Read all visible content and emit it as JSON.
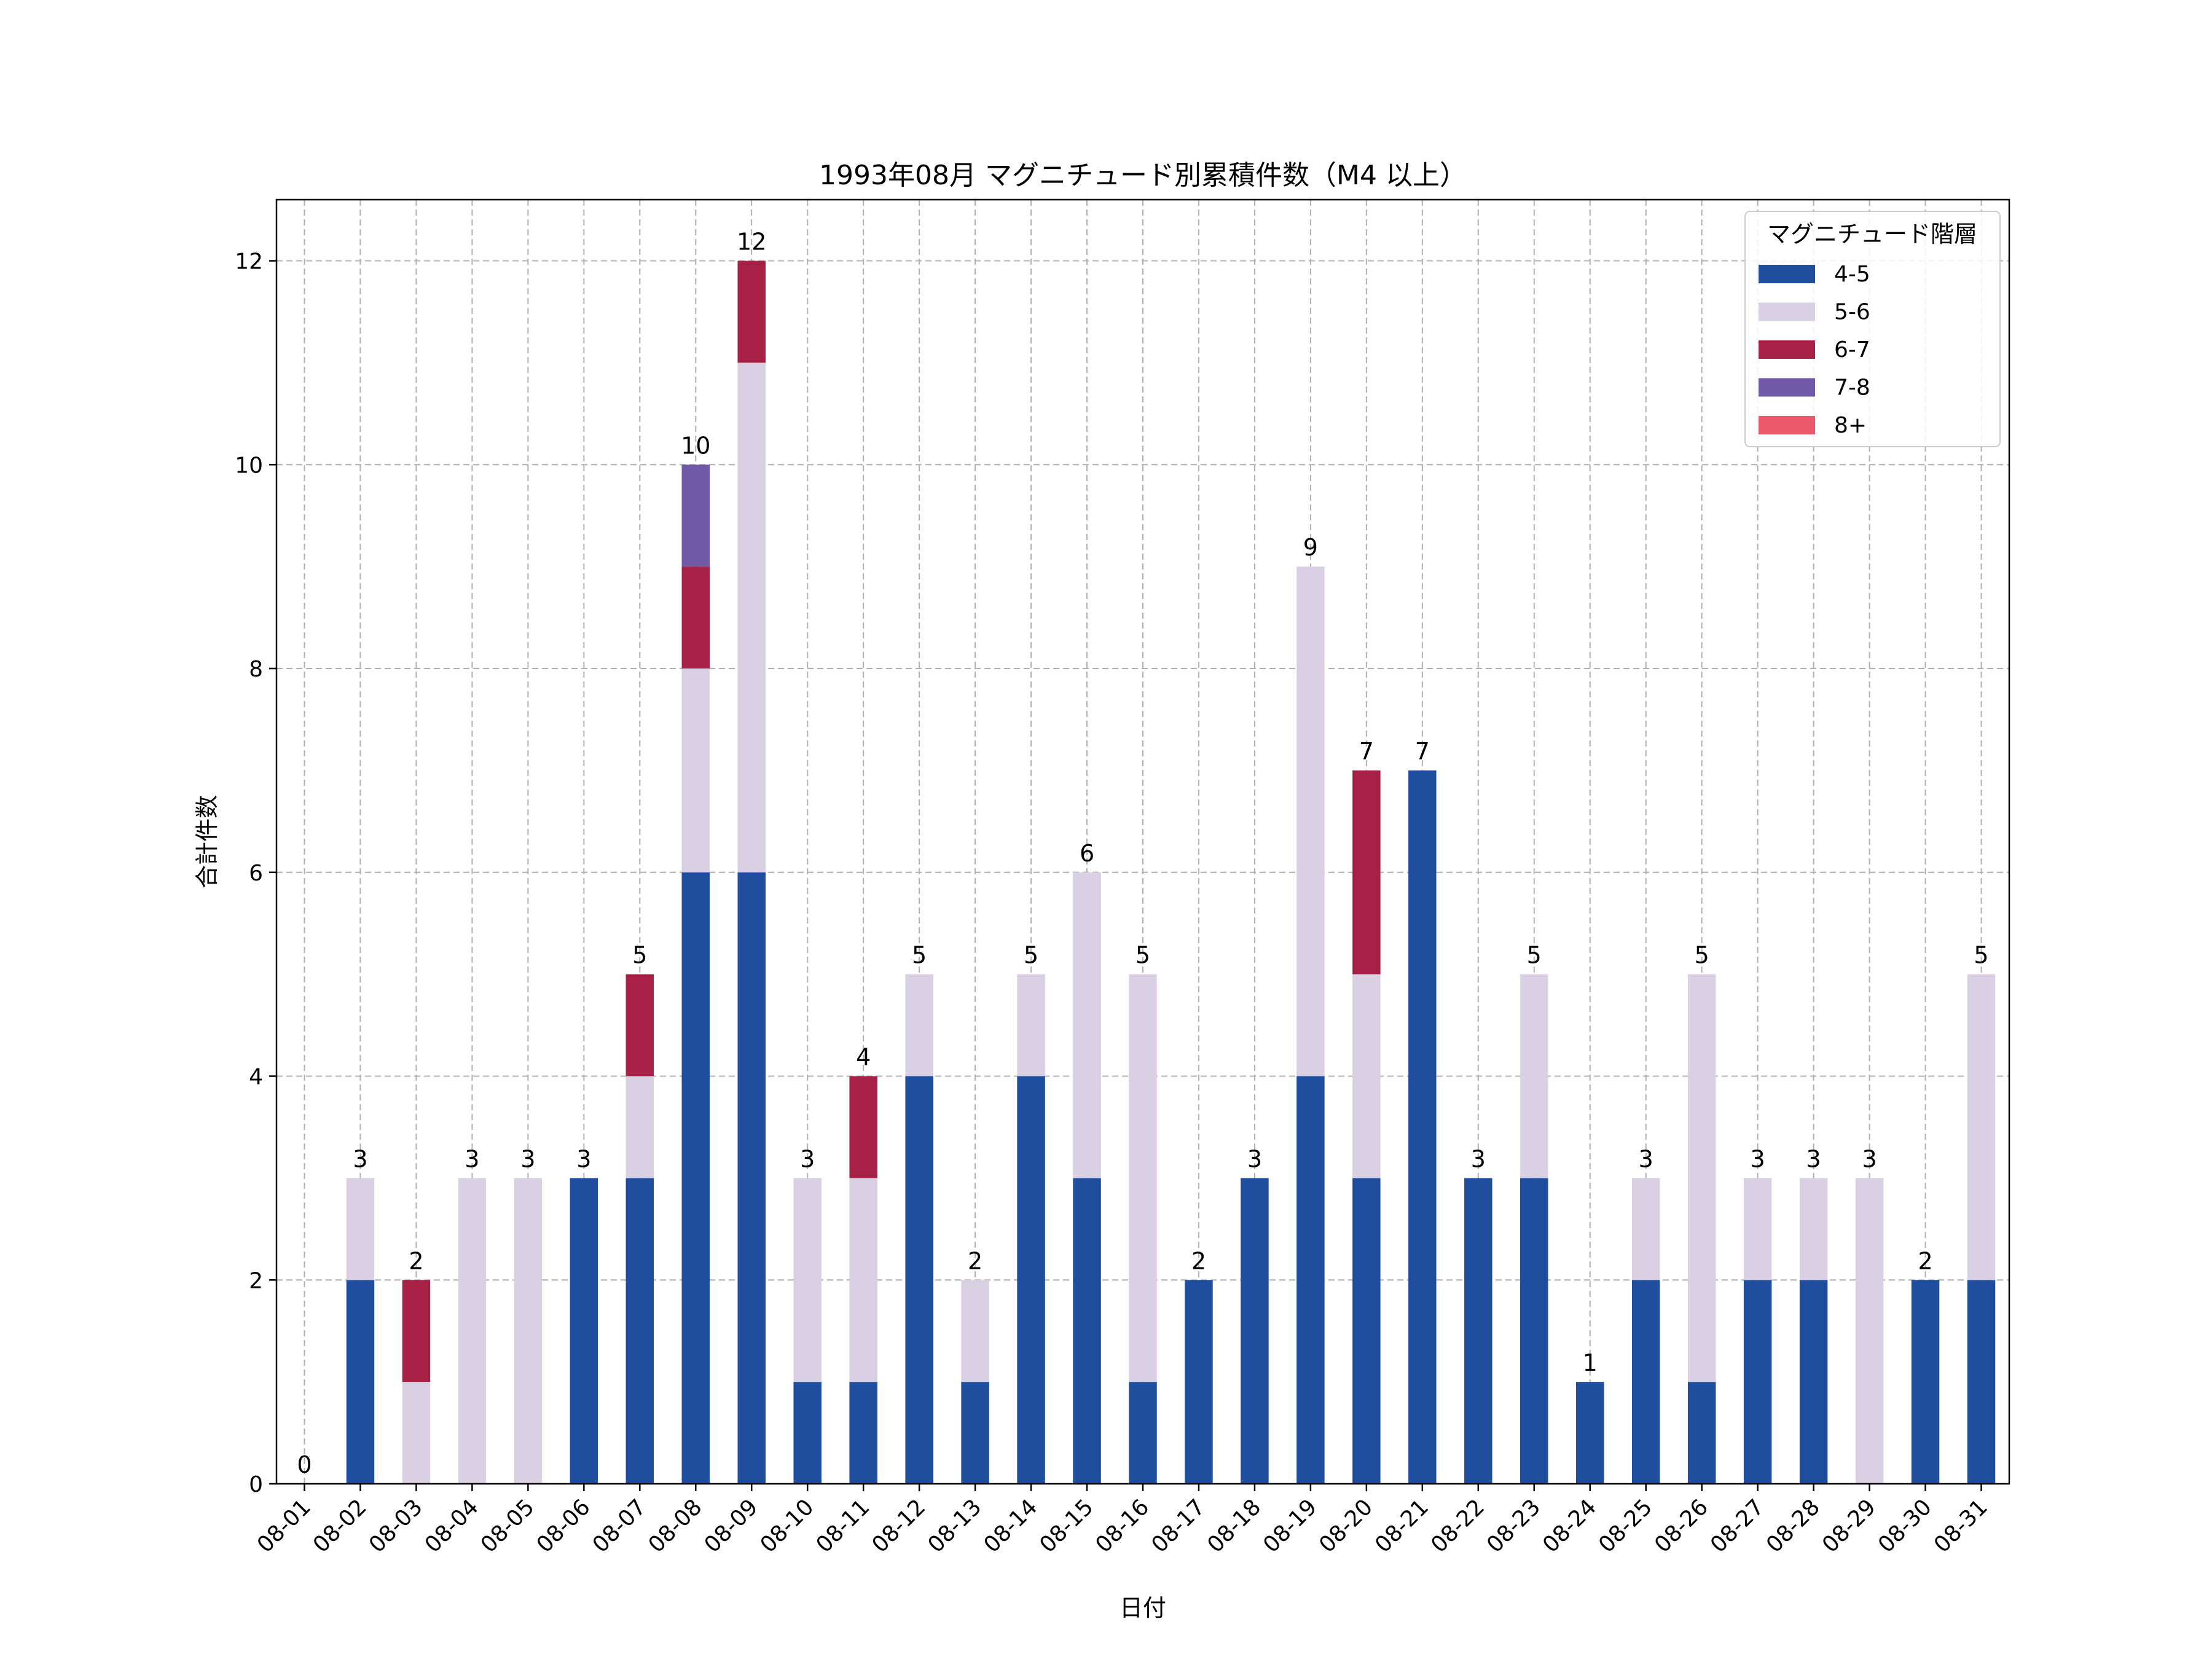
{
  "chart_data": {
    "type": "bar",
    "stacked": true,
    "title": "1993年08月 マグニチュード別累積件数（M4 以上）",
    "xlabel": "日付",
    "ylabel": "合計件数",
    "ylim": [
      0,
      12.6
    ],
    "yticks": [
      0,
      2,
      4,
      6,
      8,
      10,
      12
    ],
    "grid": true,
    "legend": {
      "title": "マグニチュード階層",
      "position": "top-right"
    },
    "categories": [
      "08-01",
      "08-02",
      "08-03",
      "08-04",
      "08-05",
      "08-06",
      "08-07",
      "08-08",
      "08-09",
      "08-10",
      "08-11",
      "08-12",
      "08-13",
      "08-14",
      "08-15",
      "08-16",
      "08-17",
      "08-18",
      "08-19",
      "08-20",
      "08-21",
      "08-22",
      "08-23",
      "08-24",
      "08-25",
      "08-26",
      "08-27",
      "08-28",
      "08-29",
      "08-30",
      "08-31"
    ],
    "series": [
      {
        "name": "4-5",
        "color": "#1f4e9f",
        "values": [
          0,
          2,
          0,
          0,
          0,
          3,
          3,
          6,
          6,
          1,
          1,
          4,
          1,
          4,
          3,
          1,
          2,
          3,
          4,
          3,
          7,
          3,
          3,
          1,
          2,
          1,
          2,
          2,
          0,
          2,
          2
        ]
      },
      {
        "name": "5-6",
        "color": "#dad0e4",
        "values": [
          0,
          1,
          1,
          3,
          3,
          0,
          1,
          2,
          5,
          2,
          2,
          1,
          1,
          1,
          3,
          4,
          0,
          0,
          5,
          2,
          0,
          0,
          2,
          0,
          1,
          4,
          1,
          1,
          3,
          0,
          3
        ]
      },
      {
        "name": "6-7",
        "color": "#a62145",
        "values": [
          0,
          0,
          1,
          0,
          0,
          0,
          1,
          1,
          1,
          0,
          1,
          0,
          0,
          0,
          0,
          0,
          0,
          0,
          0,
          2,
          0,
          0,
          0,
          0,
          0,
          0,
          0,
          0,
          0,
          0,
          0
        ]
      },
      {
        "name": "7-8",
        "color": "#7159a8",
        "values": [
          0,
          0,
          0,
          0,
          0,
          0,
          0,
          1,
          0,
          0,
          0,
          0,
          0,
          0,
          0,
          0,
          0,
          0,
          0,
          0,
          0,
          0,
          0,
          0,
          0,
          0,
          0,
          0,
          0,
          0,
          0
        ]
      },
      {
        "name": "8+",
        "color": "#e9596a",
        "values": [
          0,
          0,
          0,
          0,
          0,
          0,
          0,
          0,
          0,
          0,
          0,
          0,
          0,
          0,
          0,
          0,
          0,
          0,
          0,
          0,
          0,
          0,
          0,
          0,
          0,
          0,
          0,
          0,
          0,
          0,
          0
        ]
      }
    ],
    "totals": [
      0,
      3,
      2,
      3,
      3,
      3,
      5,
      10,
      12,
      3,
      4,
      5,
      2,
      5,
      6,
      5,
      2,
      3,
      9,
      7,
      7,
      3,
      5,
      1,
      3,
      5,
      3,
      3,
      3,
      2,
      5
    ]
  }
}
